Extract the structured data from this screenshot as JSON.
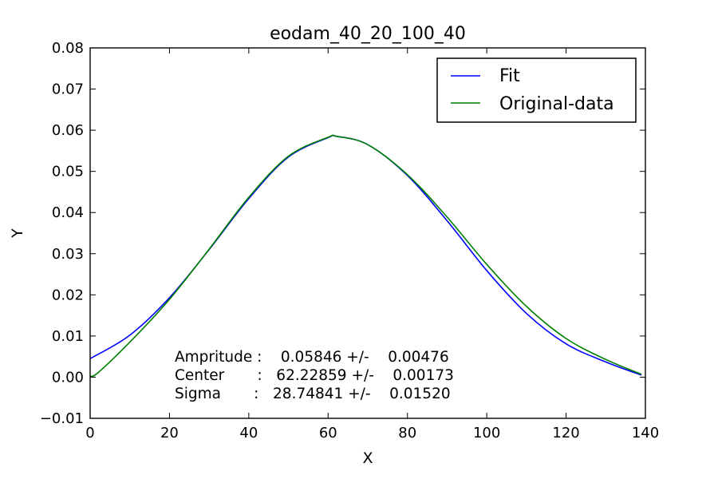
{
  "chart_data": {
    "type": "line",
    "title": "eodam_40_20_100_40",
    "xlabel": "X",
    "ylabel": "Y",
    "xlim": [
      0,
      140
    ],
    "ylim": [
      -0.01,
      0.08
    ],
    "x_ticks": [
      0,
      20,
      40,
      60,
      80,
      100,
      120,
      140
    ],
    "x_tick_labels": [
      "0",
      "20",
      "40",
      "60",
      "80",
      "100",
      "120",
      "140"
    ],
    "y_ticks": [
      -0.01,
      0.0,
      0.01,
      0.02,
      0.03,
      0.04,
      0.05,
      0.06,
      0.07,
      0.08
    ],
    "y_tick_labels": [
      "−0.01",
      "0.00",
      "0.01",
      "0.02",
      "0.03",
      "0.04",
      "0.05",
      "0.06",
      "0.07",
      "0.08"
    ],
    "grid": false,
    "legend_position": "top-right",
    "series": [
      {
        "name": "Fit",
        "color": "#0000ff",
        "x": [
          0,
          10,
          20,
          30,
          40,
          50,
          60,
          62.2,
          70,
          80,
          90,
          100,
          110,
          120,
          130,
          139
        ],
        "y": [
          0.0045,
          0.0102,
          0.0193,
          0.031,
          0.0434,
          0.0535,
          0.0582,
          0.0585,
          0.0565,
          0.049,
          0.038,
          0.0259,
          0.0155,
          0.0081,
          0.0037,
          0.0005
        ]
      },
      {
        "name": "Original-data",
        "color": "#008000",
        "x": [
          0,
          2,
          10,
          20,
          30,
          40,
          50,
          60,
          62.2,
          70,
          80,
          90,
          100,
          110,
          120,
          130,
          139
        ],
        "y": [
          0.0002,
          0.0011,
          0.0085,
          0.0189,
          0.0311,
          0.0437,
          0.0537,
          0.0583,
          0.0585,
          0.0565,
          0.0492,
          0.0389,
          0.0274,
          0.0172,
          0.0094,
          0.0043,
          0.0007
        ]
      }
    ],
    "annotation": {
      "line1": "Ampritude :    0.05846 +/-    0.00476",
      "line2": "Center       :   62.22859 +/-    0.00173",
      "line3": "Sigma       :   28.74841 +/-    0.01520"
    }
  }
}
